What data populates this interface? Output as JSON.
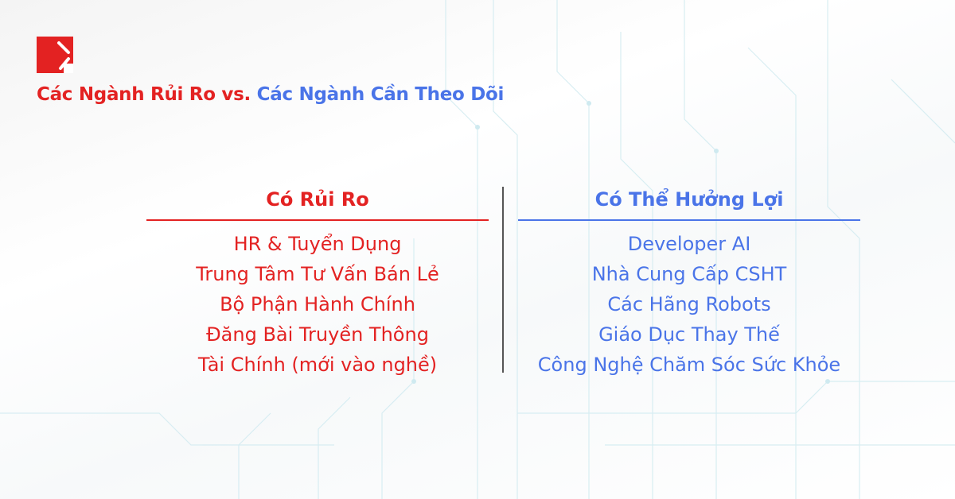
{
  "colors": {
    "risk": "#e32222",
    "benefit": "#4a74e8"
  },
  "title": {
    "part_risk": "Các Ngành Rủi Ro vs.",
    "part_watch": "Các Ngành Cần Theo Dõi"
  },
  "left": {
    "heading": "Có Rủi Ro",
    "items": [
      "HR & Tuyển Dụng",
      "Trung Tâm Tư Vấn Bán Lẻ",
      "Bộ Phận Hành Chính",
      "Đăng Bài Truyền Thông",
      "Tài Chính (mới vào nghề)"
    ]
  },
  "right": {
    "heading": "Có Thể Hưởng Lợi",
    "items": [
      "Developer AI",
      "Nhà Cung Cấp CSHT",
      "Các Hãng Robots",
      "Giáo Dục Thay Thế",
      "Công Nghệ Chăm Sóc Sức Khỏe"
    ]
  }
}
